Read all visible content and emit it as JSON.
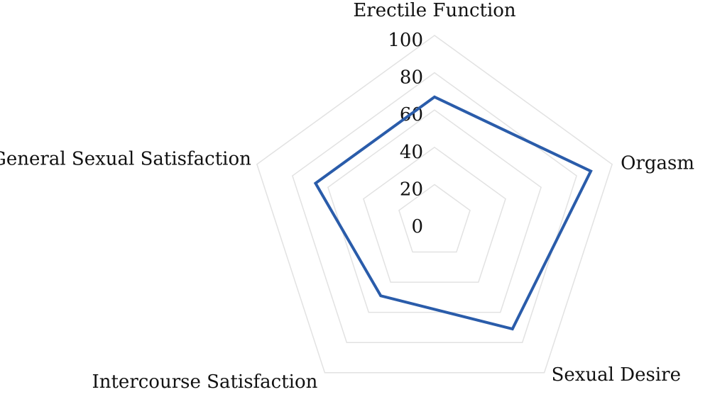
{
  "chart_data": {
    "type": "radar",
    "categories": [
      "Erectile Function",
      "Orgasm",
      "Sexual Desire",
      "Intercourse Satisfaction",
      "General Sexual Satisfaction"
    ],
    "values": [
      67,
      88,
      71,
      49,
      67
    ],
    "color": "#2a5caa",
    "ylim": [
      0,
      100
    ],
    "yticks": [
      0,
      20,
      40,
      60,
      80,
      100
    ],
    "grid": true
  }
}
